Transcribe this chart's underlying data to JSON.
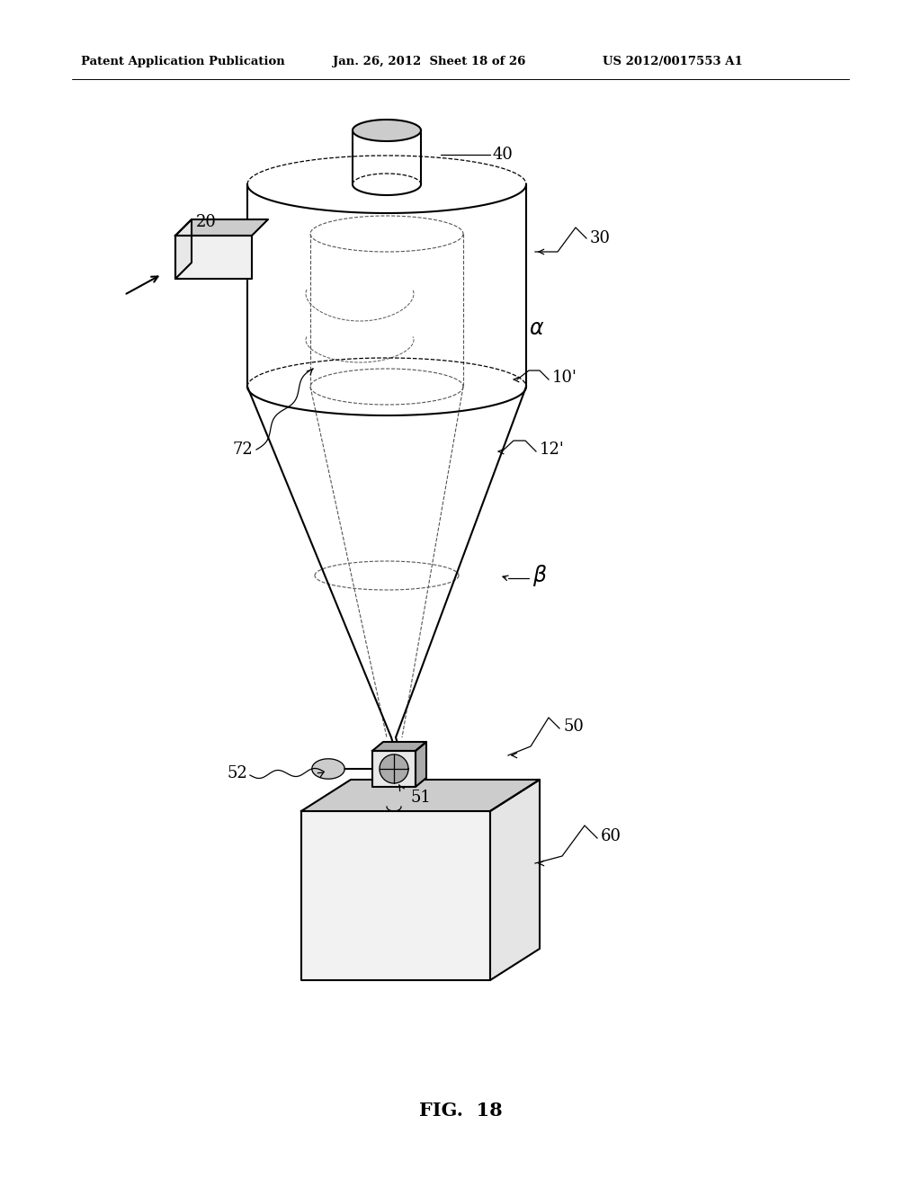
{
  "title_line1": "Patent Application Publication",
  "title_line2": "Jan. 26, 2012  Sheet 18 of 26",
  "title_line3": "US 2012/0017553 A1",
  "fig_label": "FIG.  18",
  "bg_color": "#ffffff",
  "line_color": "#000000",
  "gray1": "#cccccc",
  "gray2": "#aaaaaa",
  "gray3": "#888888",
  "gray4": "#555555",
  "lw_main": 1.5,
  "lw_thin": 0.9,
  "lw_dashed": 0.8
}
